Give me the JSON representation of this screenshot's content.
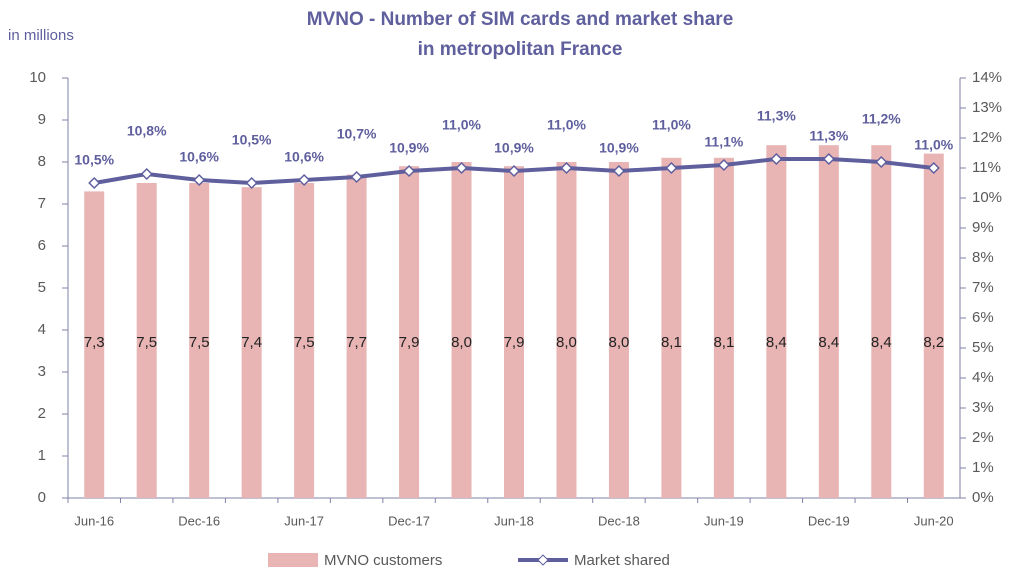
{
  "chart_data": {
    "type": "bar_line",
    "title": [
      "MVNO - Number of SIM cards and market share",
      "in metropolitan France"
    ],
    "y_axis_label": "in millions",
    "categories": [
      "Jun-16",
      null,
      "Dec-16",
      null,
      "Jun-17",
      null,
      "Dec-17",
      null,
      "Jun-18",
      null,
      "Dec-18",
      null,
      "Jun-19",
      null,
      "Dec-19",
      null,
      "Jun-20"
    ],
    "series": [
      {
        "name": "MVNO customers",
        "type": "bar",
        "color": "#e8b4b4",
        "axis": "y",
        "values": [
          7.3,
          7.5,
          7.5,
          7.4,
          7.5,
          7.7,
          7.9,
          8.0,
          7.9,
          8.0,
          8.0,
          8.1,
          8.1,
          8.4,
          8.4,
          8.4,
          8.2
        ],
        "value_labels": [
          "7,3",
          "7,5",
          "7,5",
          "7,4",
          "7,5",
          "7,7",
          "7,9",
          "8,0",
          "7,9",
          "8,0",
          "8,0",
          "8,1",
          "8,1",
          "8,4",
          "8,4",
          "8,4",
          "8,2"
        ]
      },
      {
        "name": "Market shared",
        "type": "line",
        "color": "#5f5f9e",
        "axis": "y2",
        "values": [
          10.5,
          10.8,
          10.6,
          10.5,
          10.6,
          10.7,
          10.9,
          11.0,
          10.9,
          11.0,
          10.9,
          11.0,
          11.1,
          11.3,
          11.3,
          11.2,
          11.0
        ],
        "value_labels": [
          "10,5%",
          "10,8%",
          "10,6%",
          "10,5%",
          "10,6%",
          "10,7%",
          "10,9%",
          "11,0%",
          "10,9%",
          "11,0%",
          "10,9%",
          "11,0%",
          "11,1%",
          "11,3%",
          "11,3%",
          "11,2%",
          "11,0%"
        ]
      }
    ],
    "ylim": [
      0,
      10
    ],
    "yticks": [
      0,
      1,
      2,
      3,
      4,
      5,
      6,
      7,
      8,
      9,
      10
    ],
    "y2lim": [
      0,
      14
    ],
    "y2ticks": [
      {
        "value": 0,
        "label": "0%"
      },
      {
        "value": 1,
        "label": "1%"
      },
      {
        "value": 2,
        "label": "2%"
      },
      {
        "value": 3,
        "label": "3%"
      },
      {
        "value": 4,
        "label": "4%"
      },
      {
        "value": 5,
        "label": "5%"
      },
      {
        "value": 6,
        "label": "6%"
      },
      {
        "value": 7,
        "label": "7%"
      },
      {
        "value": 8,
        "label": "8%"
      },
      {
        "value": 9,
        "label": "9%"
      },
      {
        "value": 10,
        "label": "10%"
      },
      {
        "value": 11,
        "label": "11%"
      },
      {
        "value": 12,
        "label": "12%"
      },
      {
        "value": 13,
        "label": "13%"
      },
      {
        "value": 14,
        "label": "14%"
      }
    ],
    "grid": false,
    "legend": "bottom"
  }
}
